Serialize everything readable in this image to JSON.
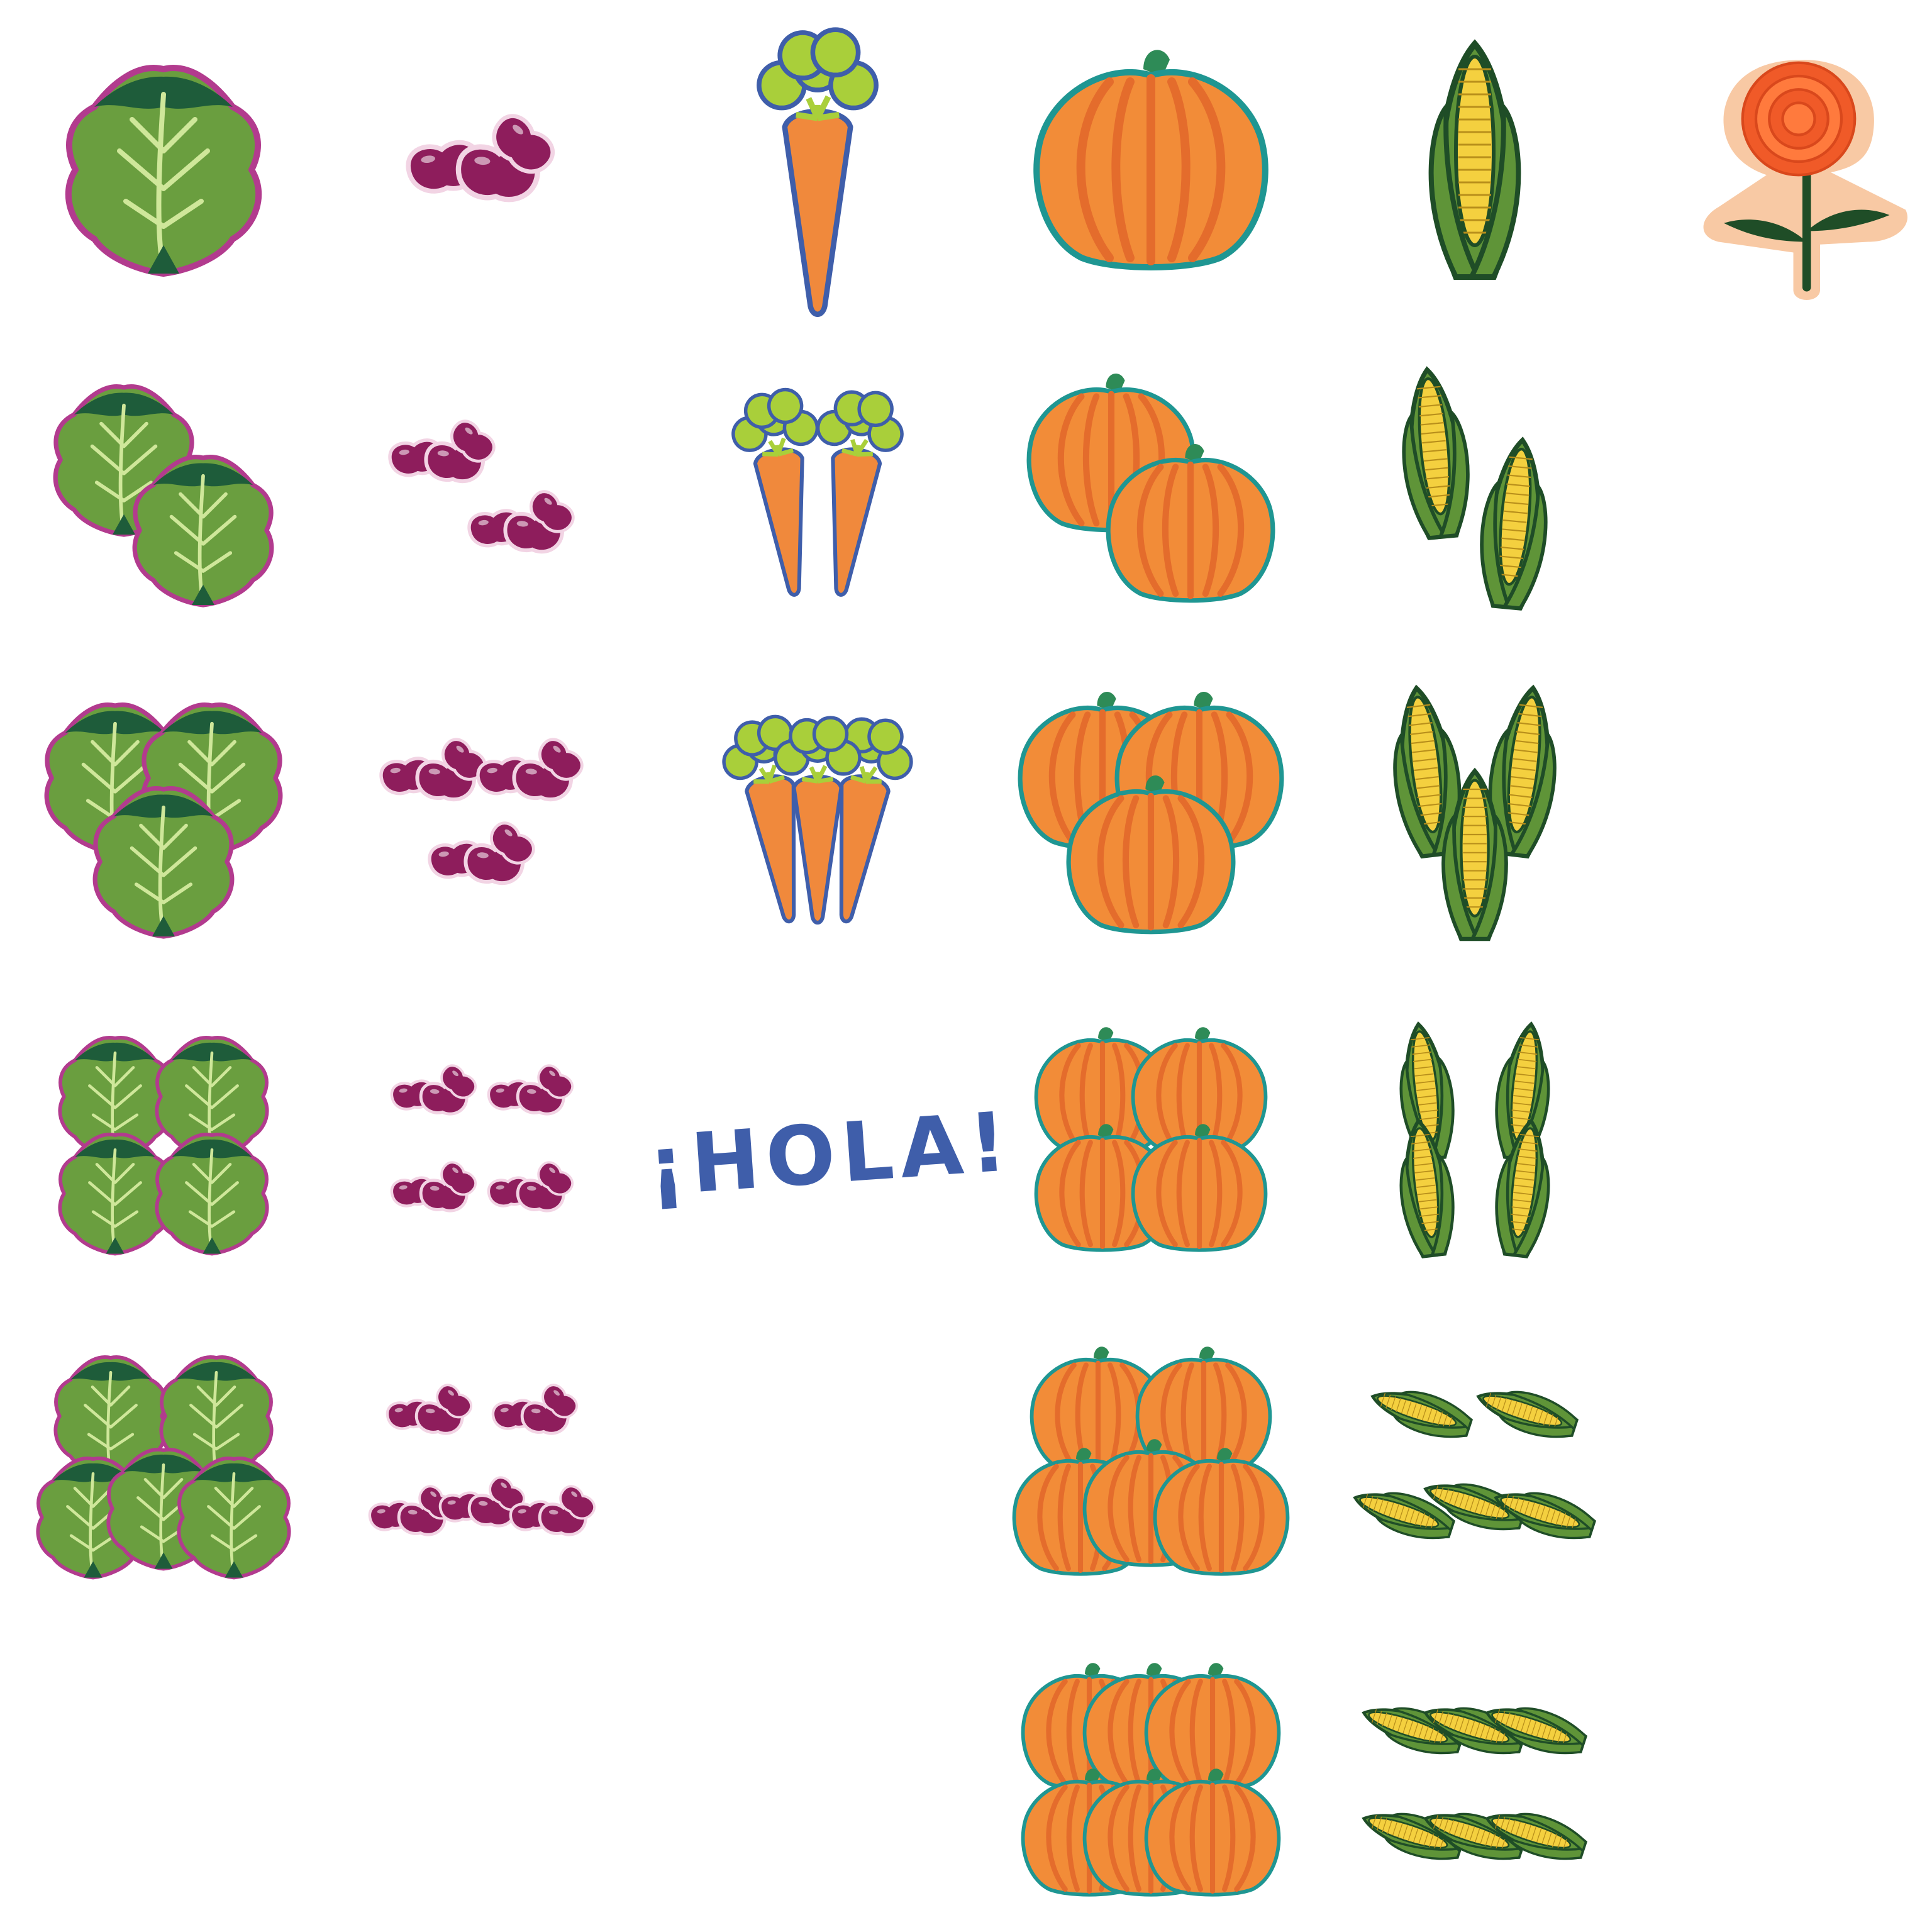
{
  "greeting": "¡HOLA!",
  "colors": {
    "lettuce_leaf": "#6a9e3f",
    "lettuce_dark": "#1e5c3a",
    "lettuce_rib": "#cfe79a",
    "lettuce_outline": "#b23b8e",
    "bean": "#8e1d5c",
    "bean_light": "#ac2e77",
    "bean_outline": "#f2d4e4",
    "carrot": "#f0893c",
    "carrot_outline": "#3f5eaa",
    "carrot_top": "#a9cf3a",
    "pumpkin": "#f28c38",
    "pumpkin_rib": "#e46c2c",
    "pumpkin_outline": "#1f9692",
    "pumpkin_stem": "#2e8b57",
    "corn_husk": "#5f9438",
    "corn_outline": "#1f4d27",
    "corn_kernel": "#f4d03f",
    "marigold": "#f05a28",
    "marigold_bg": "#f8c9a4",
    "marigold_stem": "#1f4d27"
  },
  "columns": [
    {
      "name": "lettuce",
      "icon": "lettuce-icon",
      "counts": [
        1,
        2,
        3,
        4,
        5
      ]
    },
    {
      "name": "beans",
      "icon": "beans-icon",
      "counts": [
        1,
        2,
        3,
        4,
        5
      ]
    },
    {
      "name": "carrots",
      "icon": "carrot-icon",
      "counts": [
        1,
        2,
        3
      ]
    },
    {
      "name": "pumpkins",
      "icon": "pumpkin-icon",
      "counts": [
        1,
        2,
        3,
        4,
        5,
        6
      ]
    },
    {
      "name": "corn",
      "icon": "corn-icon",
      "counts": [
        1,
        2,
        3,
        4,
        5,
        6
      ]
    },
    {
      "name": "marigold",
      "icon": "marigold-icon",
      "counts": [
        1
      ]
    }
  ]
}
